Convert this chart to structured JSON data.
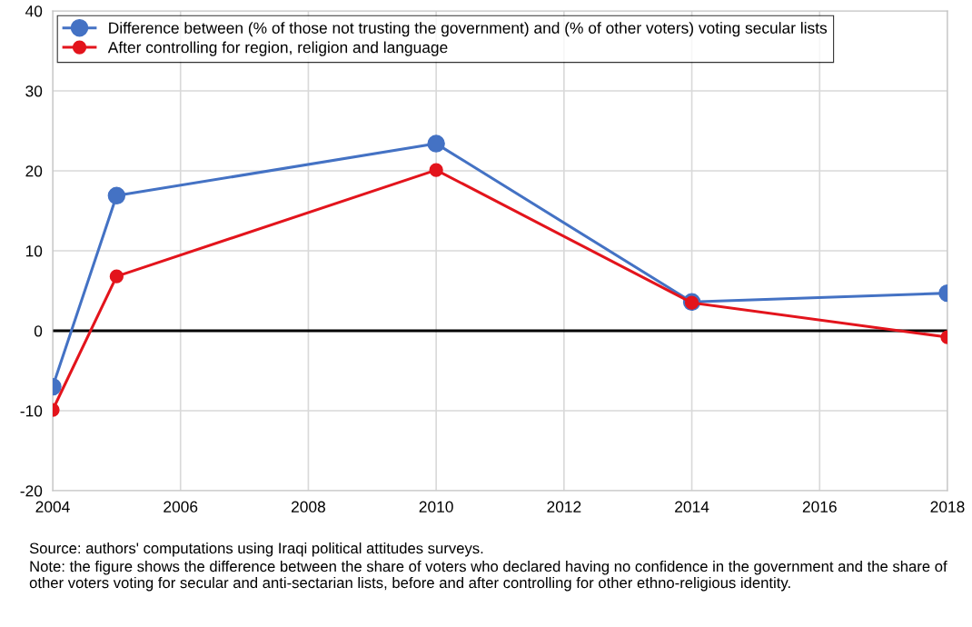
{
  "chart_data": {
    "type": "line",
    "x": [
      2004,
      2005,
      2010,
      2014,
      2018
    ],
    "series": [
      {
        "name": "Difference between (% of those not trusting the government) and (% of other voters) voting secular lists",
        "color": "#4472c4",
        "values": [
          -7.0,
          16.9,
          23.4,
          3.6,
          4.7
        ]
      },
      {
        "name": "After controlling for region, religion and language",
        "color": "#e3141c",
        "values": [
          -9.9,
          6.8,
          20.1,
          3.5,
          -0.8
        ]
      }
    ],
    "xlim": [
      2004,
      2018
    ],
    "xticks": [
      2004,
      2006,
      2008,
      2010,
      2012,
      2014,
      2016,
      2018
    ],
    "ylim": [
      -20,
      40
    ],
    "yticks": [
      -20,
      -10,
      0,
      10,
      20,
      30,
      40
    ],
    "ref_lines": [
      {
        "axis": "y",
        "value": 0,
        "color": "#000000"
      }
    ],
    "grid": true,
    "legend": "top left",
    "marker": "circle",
    "line_style": "solid",
    "annotations": [
      "Source: authors' computations using Iraqi political attitudes surveys.",
      "Note: the figure shows the difference between the share of voters who declared having no confidence in the government and the share of other voters voting for secular and anti-sectarian lists, before and after controlling for other ethno-religious identity."
    ]
  }
}
